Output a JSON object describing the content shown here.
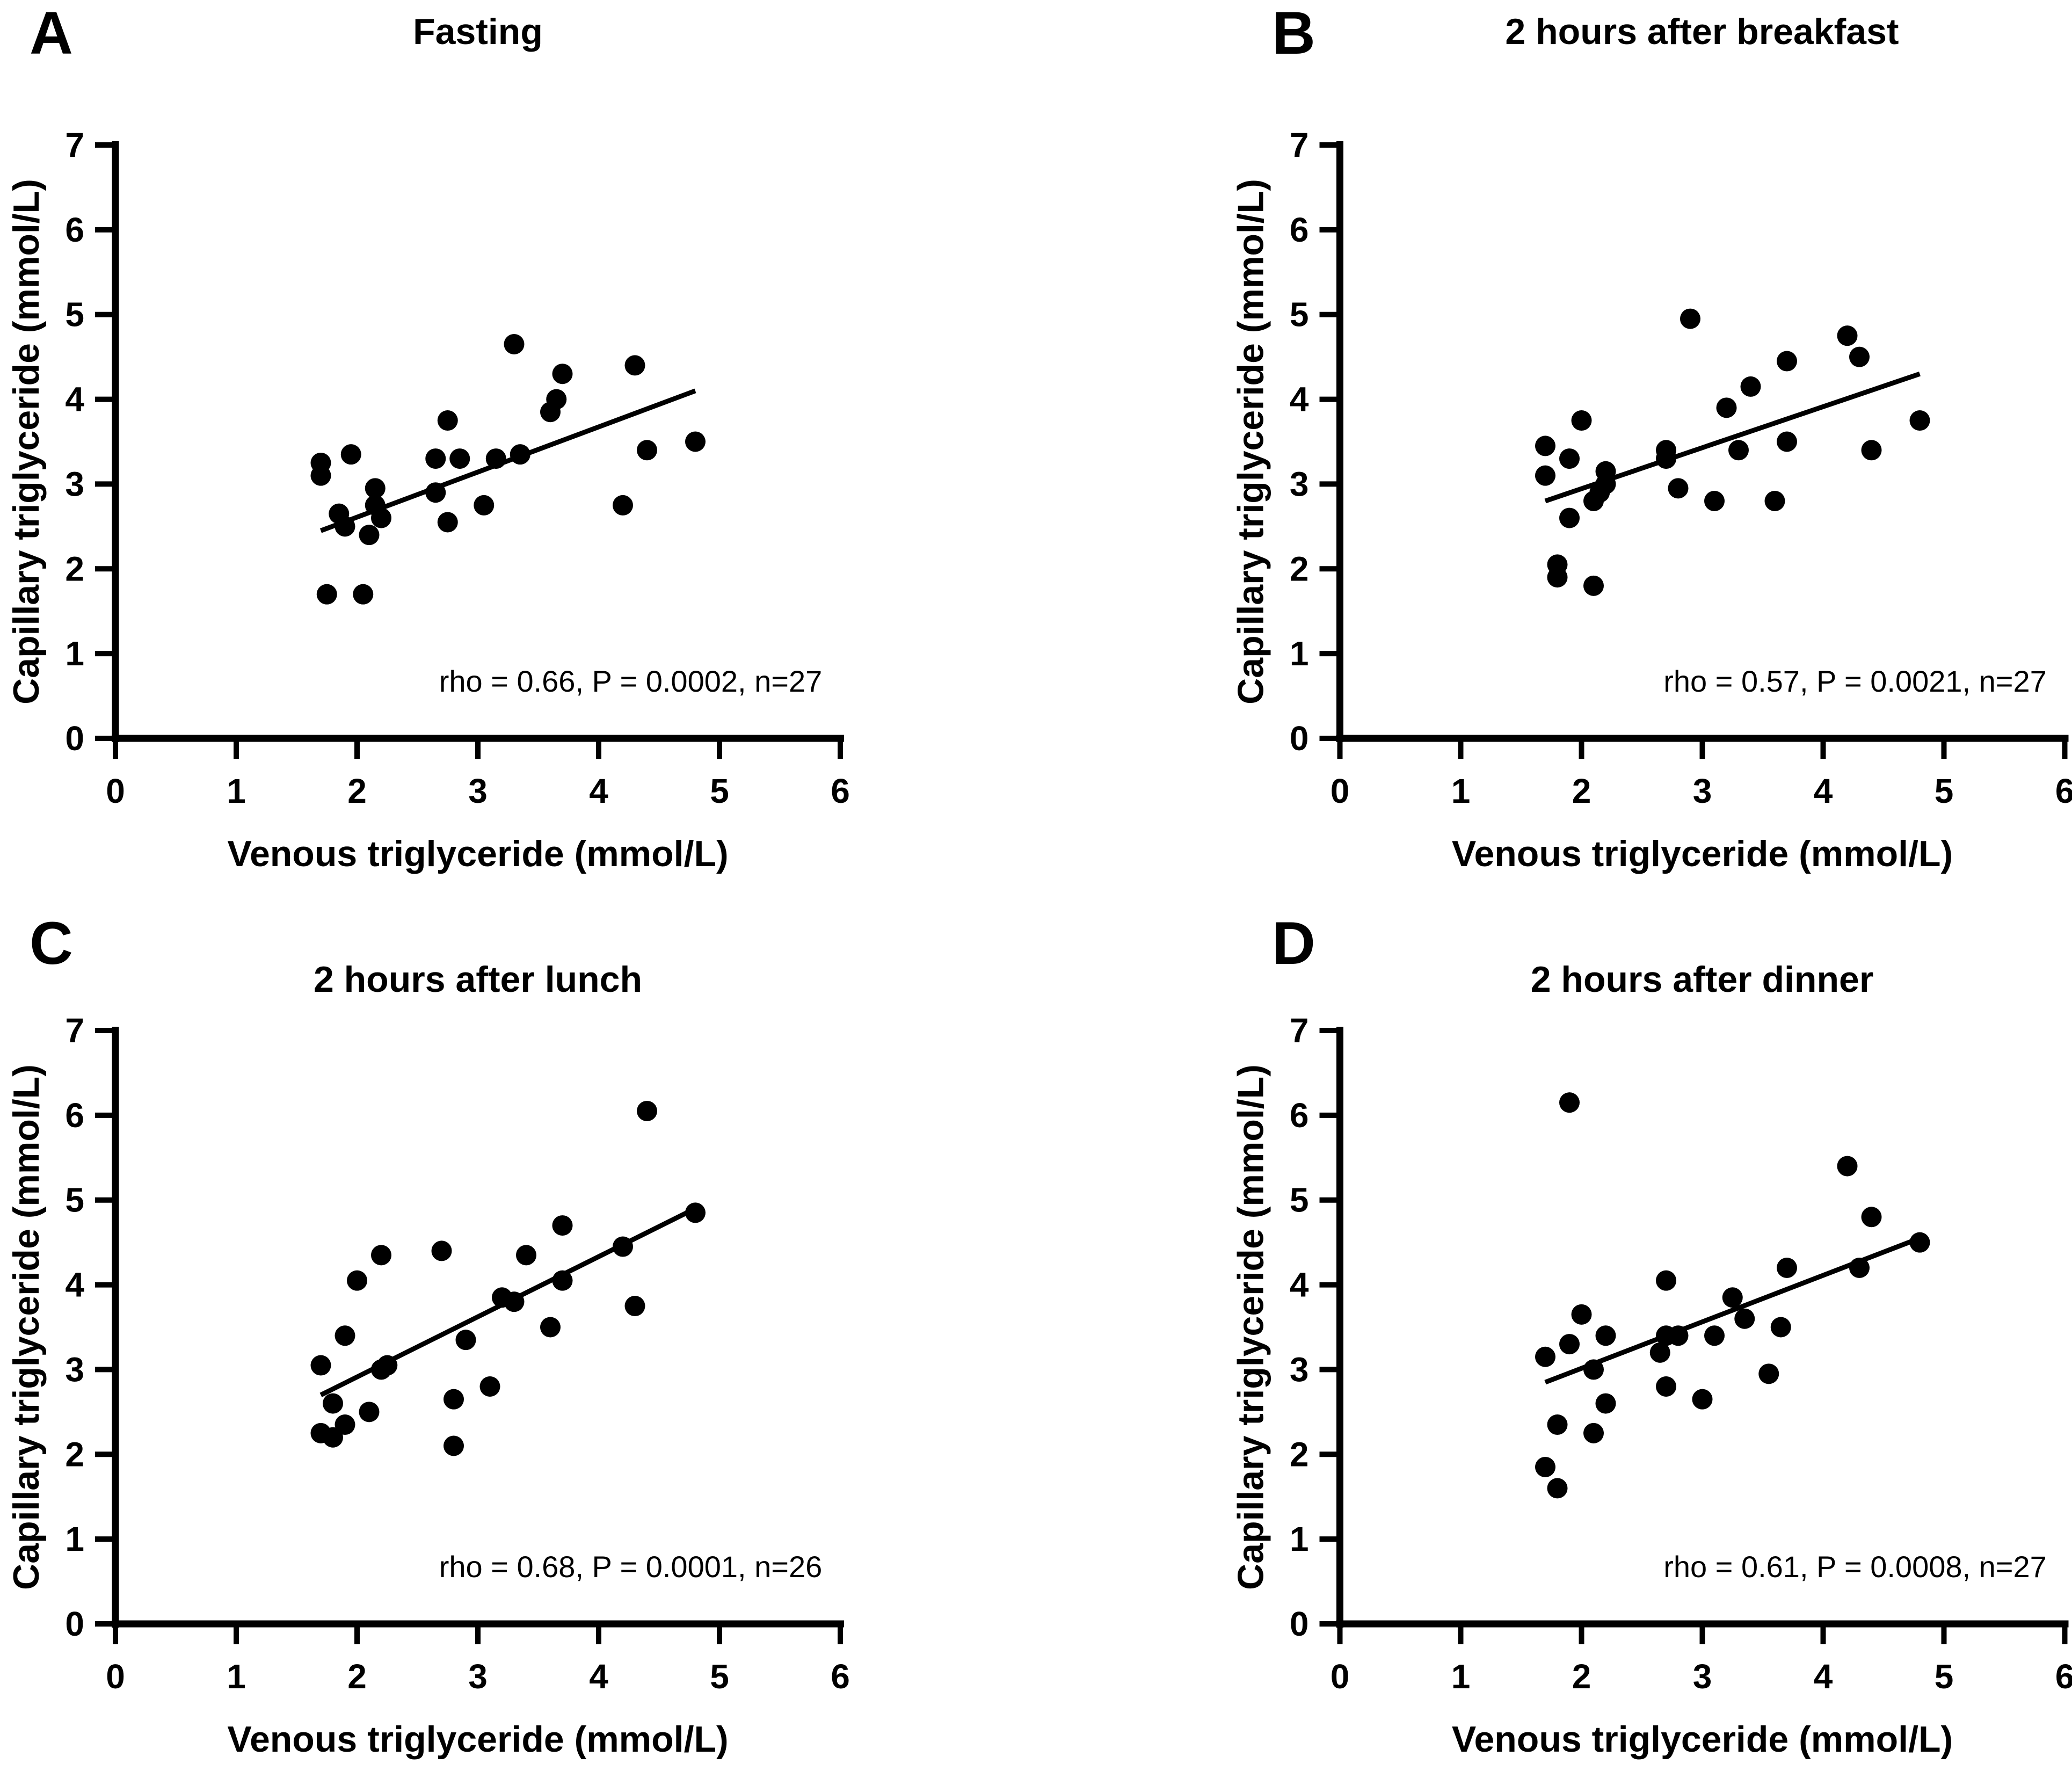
{
  "figure": {
    "background": "#ffffff",
    "ink": "#000000"
  },
  "chart_data": [
    {
      "type": "scatter",
      "panel_letter": "A",
      "title": "Fasting",
      "xlabel": "Venous triglyceride (mmol/L)",
      "ylabel": "Capillary triglyceride (mmol/L)",
      "annotation": "rho = 0.66, P = 0.0002, n=27",
      "rho": 0.66,
      "p_value": "0.0002",
      "n": 27,
      "xlim": [
        0,
        6
      ],
      "ylim": [
        0,
        7
      ],
      "xticks": [
        0,
        1,
        2,
        3,
        4,
        5,
        6
      ],
      "yticks": [
        0,
        1,
        2,
        3,
        4,
        5,
        6,
        7
      ],
      "grid": false,
      "marker_color": "#000000",
      "points": [
        [
          1.7,
          3.25
        ],
        [
          1.7,
          3.1
        ],
        [
          1.75,
          1.7
        ],
        [
          1.85,
          2.65
        ],
        [
          1.9,
          2.5
        ],
        [
          1.95,
          3.35
        ],
        [
          2.05,
          1.7
        ],
        [
          2.1,
          2.4
        ],
        [
          2.15,
          2.95
        ],
        [
          2.15,
          2.75
        ],
        [
          2.2,
          2.6
        ],
        [
          2.65,
          3.3
        ],
        [
          2.65,
          2.9
        ],
        [
          2.75,
          3.75
        ],
        [
          2.75,
          2.55
        ],
        [
          2.85,
          3.3
        ],
        [
          3.05,
          2.75
        ],
        [
          3.15,
          3.3
        ],
        [
          3.3,
          4.65
        ],
        [
          3.35,
          3.35
        ],
        [
          3.6,
          3.85
        ],
        [
          3.65,
          4.0
        ],
        [
          3.7,
          4.3
        ],
        [
          4.2,
          2.75
        ],
        [
          4.3,
          4.4
        ],
        [
          4.4,
          3.4
        ],
        [
          4.8,
          3.5
        ]
      ],
      "trendline": {
        "x1": 1.7,
        "y1": 2.45,
        "x2": 4.8,
        "y2": 4.1
      }
    },
    {
      "type": "scatter",
      "panel_letter": "B",
      "title": "2 hours after breakfast",
      "xlabel": "Venous triglyceride (mmol/L)",
      "ylabel": "Capillary triglyceride (mmol/L)",
      "annotation": "rho = 0.57, P = 0.0021, n=27",
      "rho": 0.57,
      "p_value": "0.0021",
      "n": 27,
      "xlim": [
        0,
        6
      ],
      "ylim": [
        0,
        7
      ],
      "xticks": [
        0,
        1,
        2,
        3,
        4,
        5,
        6
      ],
      "yticks": [
        0,
        1,
        2,
        3,
        4,
        5,
        6,
        7
      ],
      "grid": false,
      "marker_color": "#000000",
      "points": [
        [
          1.7,
          3.45
        ],
        [
          1.7,
          3.1
        ],
        [
          1.8,
          2.05
        ],
        [
          1.8,
          1.9
        ],
        [
          1.9,
          3.3
        ],
        [
          1.9,
          2.6
        ],
        [
          2.0,
          3.75
        ],
        [
          2.1,
          2.8
        ],
        [
          2.1,
          1.8
        ],
        [
          2.15,
          2.9
        ],
        [
          2.2,
          3.15
        ],
        [
          2.2,
          3.0
        ],
        [
          2.7,
          3.4
        ],
        [
          2.7,
          3.3
        ],
        [
          2.8,
          2.95
        ],
        [
          2.9,
          4.95
        ],
        [
          3.1,
          2.8
        ],
        [
          3.2,
          3.9
        ],
        [
          3.3,
          3.4
        ],
        [
          3.4,
          4.15
        ],
        [
          3.6,
          2.8
        ],
        [
          3.7,
          4.45
        ],
        [
          3.7,
          3.5
        ],
        [
          4.2,
          4.75
        ],
        [
          4.3,
          4.5
        ],
        [
          4.4,
          3.4
        ],
        [
          4.8,
          3.75
        ]
      ],
      "trendline": {
        "x1": 1.7,
        "y1": 2.8,
        "x2": 4.8,
        "y2": 4.3
      }
    },
    {
      "type": "scatter",
      "panel_letter": "C",
      "title": "2 hours after lunch",
      "xlabel": "Venous triglyceride (mmol/L)",
      "ylabel": "Capillary triglyceride (mmol/L)",
      "annotation": "rho = 0.68, P = 0.0001, n=26",
      "rho": 0.68,
      "p_value": "0.0001",
      "n": 26,
      "xlim": [
        0,
        6
      ],
      "ylim": [
        0,
        7
      ],
      "xticks": [
        0,
        1,
        2,
        3,
        4,
        5,
        6
      ],
      "yticks": [
        0,
        1,
        2,
        3,
        4,
        5,
        6,
        7
      ],
      "grid": false,
      "marker_color": "#000000",
      "points": [
        [
          1.7,
          3.05
        ],
        [
          1.7,
          2.25
        ],
        [
          1.8,
          2.6
        ],
        [
          1.8,
          2.2
        ],
        [
          1.9,
          3.4
        ],
        [
          1.9,
          2.35
        ],
        [
          2.0,
          4.05
        ],
        [
          2.1,
          2.5
        ],
        [
          2.2,
          4.35
        ],
        [
          2.2,
          3.0
        ],
        [
          2.25,
          3.05
        ],
        [
          2.7,
          4.4
        ],
        [
          2.8,
          2.65
        ],
        [
          2.8,
          2.1
        ],
        [
          2.9,
          3.35
        ],
        [
          3.1,
          2.8
        ],
        [
          3.2,
          3.85
        ],
        [
          3.3,
          3.8
        ],
        [
          3.4,
          4.35
        ],
        [
          3.6,
          3.5
        ],
        [
          3.7,
          4.7
        ],
        [
          3.7,
          4.05
        ],
        [
          4.2,
          4.45
        ],
        [
          4.3,
          3.75
        ],
        [
          4.4,
          6.05
        ],
        [
          4.8,
          4.85
        ]
      ],
      "trendline": {
        "x1": 1.7,
        "y1": 2.7,
        "x2": 4.8,
        "y2": 4.9
      }
    },
    {
      "type": "scatter",
      "panel_letter": "D",
      "title": "2 hours after dinner",
      "xlabel": "Venous triglyceride (mmol/L)",
      "ylabel": "Capillary triglyceride (mmol/L)",
      "annotation": "rho = 0.61, P = 0.0008, n=27",
      "rho": 0.61,
      "p_value": "0.0008",
      "n": 27,
      "xlim": [
        0,
        6
      ],
      "ylim": [
        0,
        7
      ],
      "xticks": [
        0,
        1,
        2,
        3,
        4,
        5,
        6
      ],
      "yticks": [
        0,
        1,
        2,
        3,
        4,
        5,
        6,
        7
      ],
      "grid": false,
      "marker_color": "#000000",
      "points": [
        [
          1.7,
          3.15
        ],
        [
          1.9,
          3.3
        ],
        [
          1.9,
          6.15
        ],
        [
          1.7,
          1.85
        ],
        [
          1.8,
          1.6
        ],
        [
          1.8,
          2.35
        ],
        [
          2.0,
          3.65
        ],
        [
          2.1,
          3.0
        ],
        [
          2.1,
          2.25
        ],
        [
          2.2,
          3.4
        ],
        [
          2.2,
          2.6
        ],
        [
          2.65,
          3.2
        ],
        [
          2.7,
          4.05
        ],
        [
          2.7,
          3.4
        ],
        [
          2.7,
          2.8
        ],
        [
          2.8,
          3.4
        ],
        [
          3.0,
          2.65
        ],
        [
          3.1,
          3.4
        ],
        [
          3.25,
          3.85
        ],
        [
          3.35,
          3.6
        ],
        [
          3.55,
          2.95
        ],
        [
          3.65,
          3.5
        ],
        [
          3.7,
          4.2
        ],
        [
          4.2,
          5.4
        ],
        [
          4.3,
          4.2
        ],
        [
          4.4,
          4.8
        ],
        [
          4.8,
          4.5
        ]
      ],
      "trendline": {
        "x1": 1.7,
        "y1": 2.85,
        "x2": 4.8,
        "y2": 4.55
      }
    }
  ]
}
